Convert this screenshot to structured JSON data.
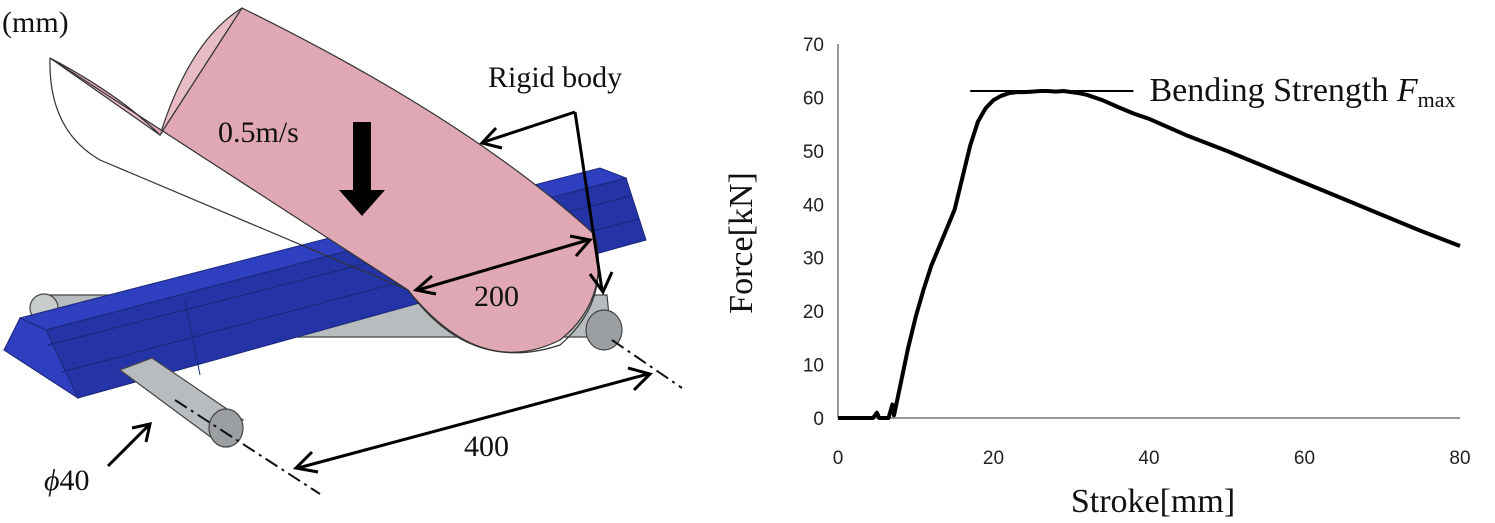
{
  "figure": {
    "units_label": "(mm)",
    "rigid_body_label": "Rigid body",
    "velocity_label": "0.5m/s",
    "radius_dim": "200",
    "span_dim": "400",
    "diameter_prefix": "ϕ",
    "diameter_value": "40",
    "colors": {
      "impactor": "#dfa8b4",
      "beam": "#2e3fbf",
      "support": "#b9bcbe"
    }
  },
  "chart_data": {
    "type": "line",
    "xlabel": "Stroke[mm]",
    "ylabel": "Force[kN]",
    "xlim": [
      0,
      80
    ],
    "ylim": [
      0,
      70
    ],
    "xticks": [
      0,
      20,
      40,
      60,
      80
    ],
    "yticks": [
      0,
      10,
      20,
      30,
      40,
      50,
      60,
      70
    ],
    "grid": false,
    "annotation": {
      "text": "Bending Strength ",
      "symbol": "F",
      "subscript": "max",
      "y": 61.2,
      "x_range": [
        17,
        38
      ]
    },
    "series": [
      {
        "x": [
          0,
          4.5,
          5,
          5.3,
          6.5,
          7,
          7.2,
          8,
          9,
          10,
          11,
          12,
          13,
          14,
          15,
          16,
          17,
          18,
          19,
          20,
          21,
          22,
          23,
          24,
          25,
          26,
          27,
          28,
          29,
          30,
          31,
          32,
          34,
          36,
          38,
          40,
          45,
          50,
          55,
          60,
          65,
          70,
          75,
          80
        ],
        "y": [
          0,
          0,
          1,
          0,
          0,
          2.5,
          0.5,
          6,
          13,
          19,
          24,
          28.5,
          32,
          35.5,
          39,
          45,
          51,
          55.5,
          58,
          59.5,
          60.3,
          60.8,
          61,
          61,
          61.1,
          61.2,
          61.2,
          61.1,
          61.2,
          61,
          60.8,
          60.5,
          59.5,
          58.2,
          57,
          56,
          52.8,
          50,
          47,
          44,
          41,
          38,
          35,
          32.2
        ]
      }
    ]
  }
}
